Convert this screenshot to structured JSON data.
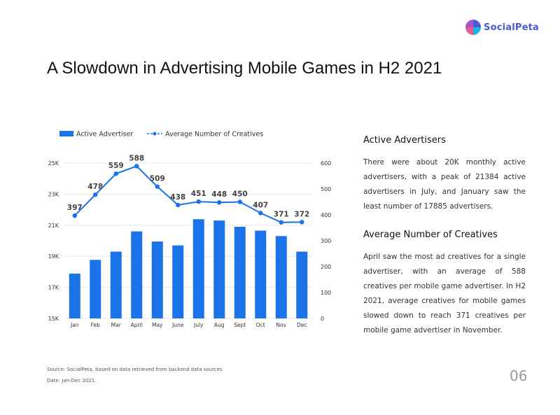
{
  "brand": {
    "name": "SocialPeta"
  },
  "page_title": "A Slowdown in Advertising Mobile Games in H2 2021",
  "sections": [
    {
      "heading": "Active Advertisers",
      "body": "There were about 20K monthly active advertisers, with a peak of 21384 active advertisers in July, and January saw the least number of 17885 advertisers."
    },
    {
      "heading": "Average Number of Creatives",
      "body": "April saw the most ad creatives for a single advertiser, with an average of 588 creatives per mobile game advertiser. In H2 2021, average creatives for mobile games slowed down to reach 371 creatives per mobile game advertiser in November."
    }
  ],
  "source": "Source: SocialPeta, based on data retrieved from backend data sources",
  "date": "Date: Jan-Dec 2021.",
  "page_number": "06",
  "colors": {
    "bar": "#1a73e8",
    "line": "#1a73e8",
    "grid": "#e6e6e6",
    "brand": "#4a59d6"
  },
  "chart_data": {
    "type": "bar+line",
    "categories": [
      "Jan",
      "Feb",
      "Mar",
      "April",
      "May",
      "June",
      "July",
      "Aug",
      "Sept",
      "Oct",
      "Nov",
      "Dec"
    ],
    "series": [
      {
        "name": "Active Advertiser",
        "type": "bar",
        "axis": "left",
        "values": [
          17885,
          18770,
          19300,
          20600,
          19950,
          19700,
          21384,
          21300,
          20900,
          20650,
          20300,
          19300
        ]
      },
      {
        "name": "Average Number of Creatives",
        "type": "line",
        "axis": "right",
        "values": [
          397,
          478,
          559,
          588,
          509,
          438,
          451,
          448,
          450,
          407,
          371,
          372
        ]
      }
    ],
    "left_axis": {
      "ticks": [
        "15K",
        "17K",
        "19K",
        "21K",
        "23K",
        "25K"
      ],
      "range": [
        15000,
        25000
      ]
    },
    "right_axis": {
      "ticks": [
        "0",
        "100",
        "200",
        "300",
        "400",
        "500",
        "600"
      ],
      "range": [
        0,
        600
      ]
    },
    "grid": true,
    "legend_position": "top-left"
  }
}
